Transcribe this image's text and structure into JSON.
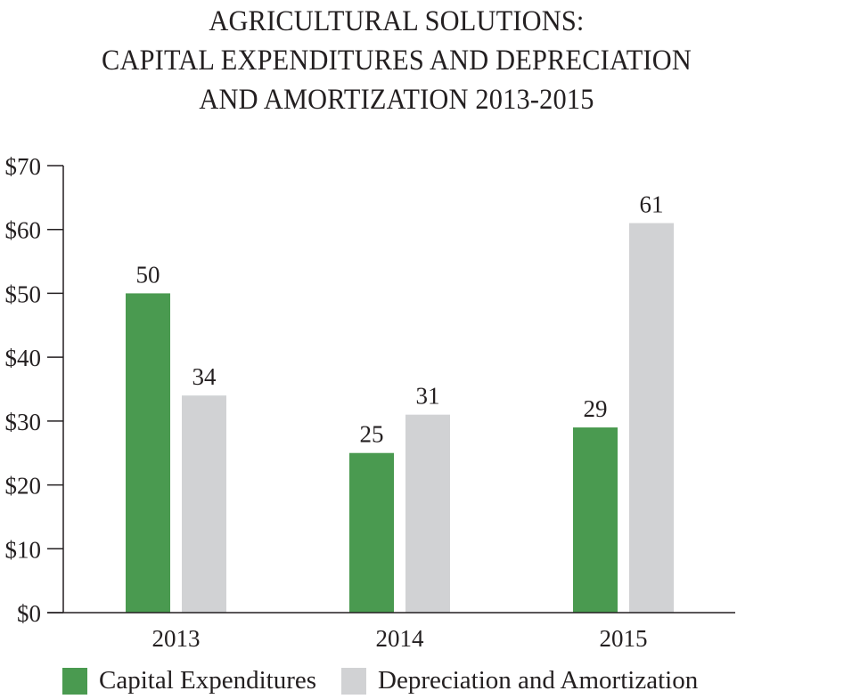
{
  "chart_data": {
    "type": "bar",
    "title": [
      "AGRICULTURAL SOLUTIONS:",
      "CAPITAL EXPENDITURES AND DEPRECIATION",
      "AND AMORTIZATION 2013-2015"
    ],
    "categories": [
      "2013",
      "2014",
      "2015"
    ],
    "series": [
      {
        "name": "Capital Expenditures",
        "color": "#4a9a50",
        "values": [
          50,
          25,
          29
        ],
        "labels": [
          "50",
          "25",
          "29"
        ]
      },
      {
        "name": "Depreciation and Amortization",
        "color": "#d1d2d4",
        "values": [
          34,
          31,
          61
        ],
        "labels": [
          "34",
          "31",
          "61"
        ]
      }
    ],
    "ylim": [
      0,
      70
    ],
    "yticks": [
      0,
      10,
      20,
      30,
      40,
      50,
      60,
      70
    ],
    "ytick_labels": [
      "$0",
      "$10",
      "$20",
      "$30",
      "$40",
      "$50",
      "$60",
      "$70"
    ],
    "xlabel": "",
    "ylabel": "",
    "grid": false,
    "legend_position": "bottom"
  }
}
